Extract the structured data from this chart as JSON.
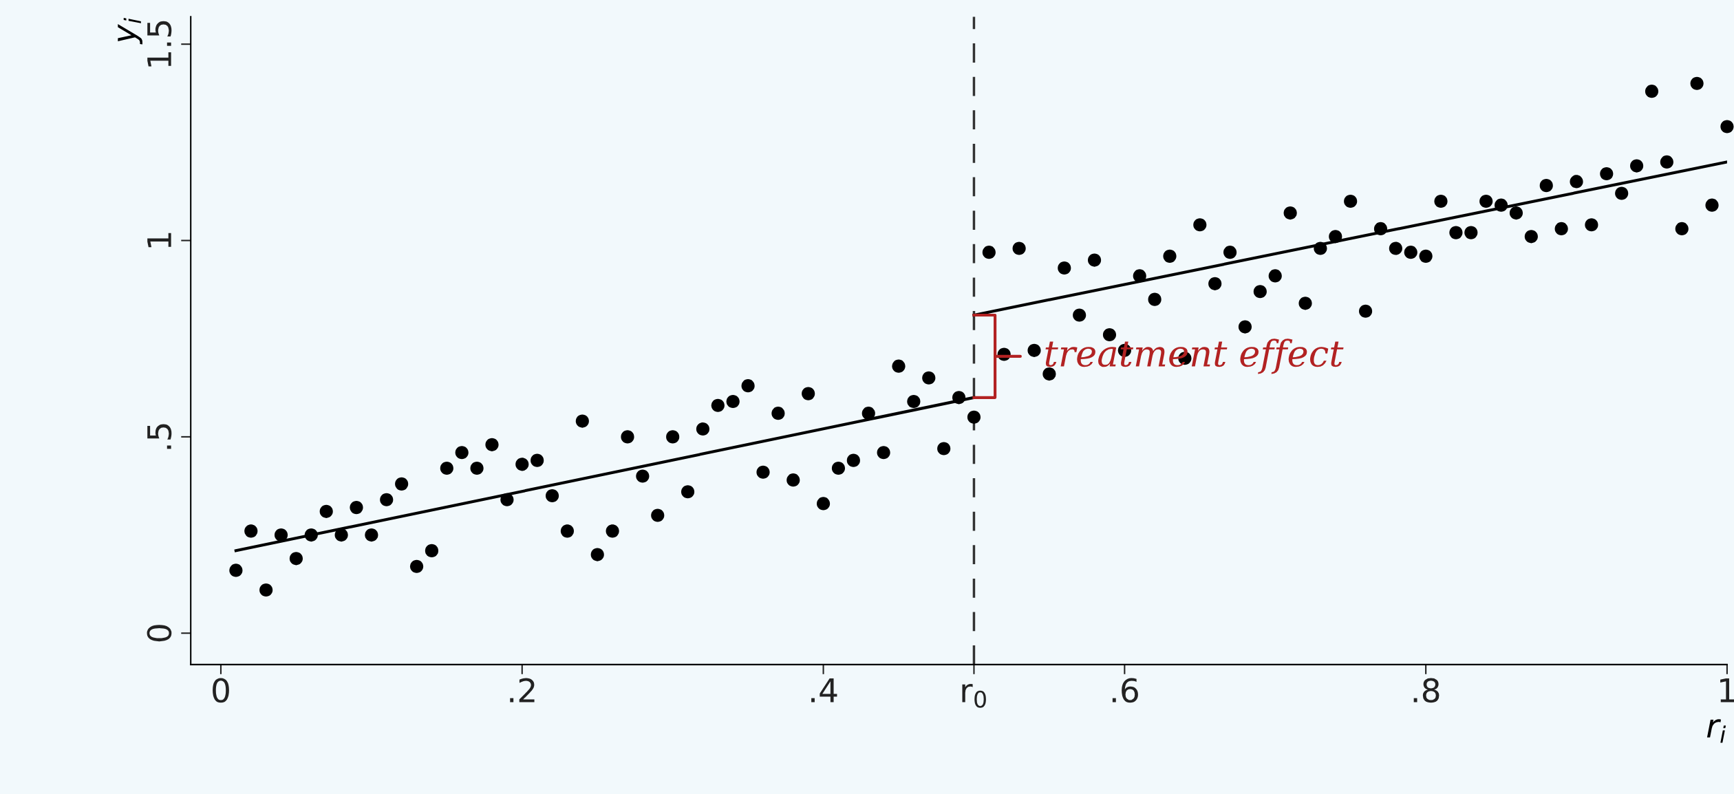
{
  "chart_data": {
    "type": "scatter",
    "xlabel": "r$_{i}$",
    "ylabel": "y$_{i}$",
    "x": [
      0.01,
      0.02,
      0.03,
      0.04,
      0.05,
      0.06,
      0.07,
      0.08,
      0.09,
      0.1,
      0.11,
      0.12,
      0.13,
      0.14,
      0.15,
      0.16,
      0.17,
      0.18,
      0.19,
      0.2,
      0.21,
      0.22,
      0.23,
      0.24,
      0.25,
      0.26,
      0.27,
      0.28,
      0.29,
      0.3,
      0.31,
      0.32,
      0.33,
      0.34,
      0.35,
      0.36,
      0.37,
      0.38,
      0.39,
      0.4,
      0.41,
      0.42,
      0.43,
      0.44,
      0.45,
      0.46,
      0.47,
      0.48,
      0.49,
      0.5,
      0.51,
      0.52,
      0.53,
      0.54,
      0.55,
      0.56,
      0.57,
      0.58,
      0.59,
      0.6,
      0.61,
      0.62,
      0.63,
      0.64,
      0.65,
      0.66,
      0.67,
      0.68,
      0.69,
      0.7,
      0.71,
      0.72,
      0.73,
      0.74,
      0.75,
      0.76,
      0.77,
      0.78,
      0.79,
      0.8,
      0.81,
      0.82,
      0.83,
      0.84,
      0.85,
      0.86,
      0.87,
      0.88,
      0.89,
      0.9,
      0.91,
      0.92,
      0.93,
      0.94,
      0.95,
      0.96,
      0.97,
      0.98,
      0.99,
      1.0
    ],
    "series": [
      {
        "color": "#000000",
        "marker": "circle",
        "values": [
          0.16,
          0.26,
          0.11,
          0.25,
          0.19,
          0.25,
          0.31,
          0.25,
          0.32,
          0.25,
          0.34,
          0.38,
          0.17,
          0.21,
          0.42,
          0.46,
          0.42,
          0.48,
          0.34,
          0.43,
          0.44,
          0.35,
          0.26,
          0.54,
          0.2,
          0.26,
          0.5,
          0.4,
          0.3,
          0.5,
          0.36,
          0.52,
          0.58,
          0.59,
          0.63,
          0.41,
          0.56,
          0.39,
          0.61,
          0.33,
          0.42,
          0.44,
          0.56,
          0.46,
          0.68,
          0.59,
          0.65,
          0.47,
          0.6,
          0.55,
          0.97,
          0.71,
          0.98,
          0.72,
          0.66,
          0.93,
          0.81,
          0.95,
          0.76,
          0.72,
          0.91,
          0.85,
          0.96,
          0.7,
          1.04,
          0.89,
          0.97,
          0.78,
          0.87,
          0.91,
          1.07,
          0.84,
          0.98,
          1.01,
          1.1,
          0.82,
          1.03,
          0.98,
          0.97,
          0.96,
          1.1,
          1.02,
          1.02,
          1.1,
          1.09,
          1.07,
          1.01,
          1.14,
          1.03,
          1.15,
          1.04,
          1.17,
          1.12,
          1.19,
          1.38,
          1.2,
          1.03,
          1.4,
          1.09,
          1.29
        ]
      },
      {
        "type": "line",
        "color": "#000000",
        "x": [
          0.01,
          0.5
        ],
        "values": [
          0.21,
          0.6
        ]
      },
      {
        "type": "line",
        "color": "#000000",
        "x": [
          0.5,
          1.0
        ],
        "values": [
          0.81,
          1.2
        ]
      }
    ],
    "xlim": [
      -0.02,
      1.0
    ],
    "ylim": [
      -0.08,
      1.57
    ],
    "xticks": [
      0,
      {
        "value": 0.2,
        "label": ".2"
      },
      {
        "value": 0.4,
        "label": ".4"
      },
      {
        "value": 0.5,
        "label": "r$_{0}$"
      },
      {
        "value": 0.6,
        "label": ".6"
      },
      {
        "value": 0.8,
        "label": ".8"
      },
      1
    ],
    "yticks": [
      0,
      {
        "value": 0.5,
        "label": ".5"
      },
      1,
      1.5
    ],
    "ref_lines": [
      {
        "axis": "x",
        "value": 0.5,
        "color": "#333333",
        "line_style": "dashed"
      }
    ],
    "annotations": [
      "treatment effect"
    ],
    "grid": false,
    "legend": false
  }
}
